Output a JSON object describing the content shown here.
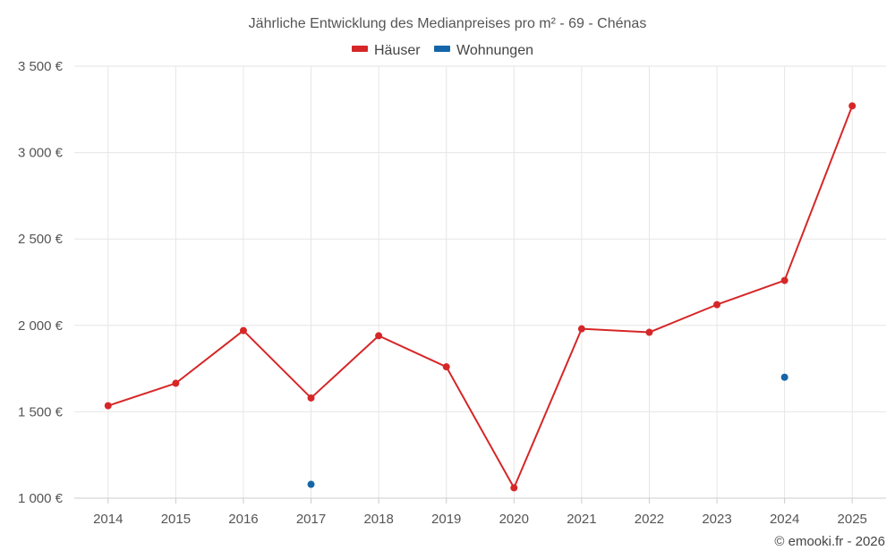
{
  "chart_data": {
    "type": "line",
    "title": "Jährliche Entwicklung des Medianpreises pro m² - 69 - Chénas",
    "categories": [
      "2014",
      "2015",
      "2016",
      "2017",
      "2018",
      "2019",
      "2020",
      "2021",
      "2022",
      "2023",
      "2024",
      "2025"
    ],
    "series": [
      {
        "name": "Häuser",
        "color": "#d62728",
        "values": [
          1535,
          1665,
          1970,
          1580,
          1940,
          1760,
          1060,
          1980,
          1960,
          2120,
          2260,
          3270
        ]
      },
      {
        "name": "Wohnungen",
        "color": "#1565a8",
        "values": [
          null,
          null,
          null,
          1080,
          null,
          null,
          null,
          null,
          null,
          null,
          1700,
          null
        ]
      }
    ],
    "ylim": [
      1000,
      3500
    ],
    "yticks": [
      1000,
      1500,
      2000,
      2500,
      3000,
      3500
    ],
    "ytick_labels": [
      "1 000 €",
      "1 500 €",
      "2 000 €",
      "2 500 €",
      "3 000 €",
      "3 500 €"
    ],
    "xlabel": "",
    "ylabel": "",
    "grid": true,
    "legend_position": "top-center"
  },
  "credit": "© emooki.fr - 2026"
}
